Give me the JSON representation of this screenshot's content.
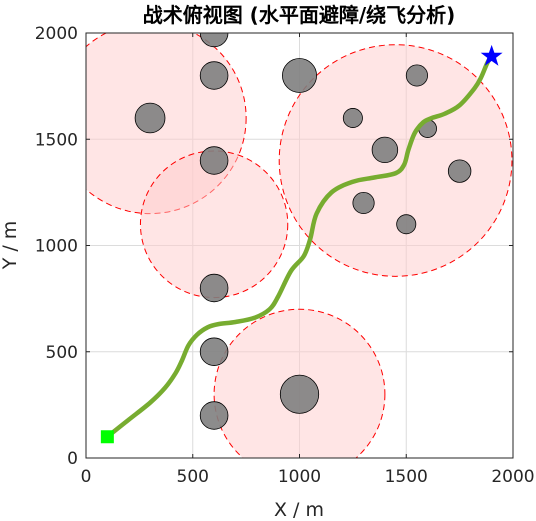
{
  "chart_data": {
    "type": "scatter",
    "title": "战术俯视图 (水平面避障/绕飞分析)",
    "xlabel": "X / m",
    "ylabel": "Y / m",
    "xlim": [
      0,
      2000
    ],
    "ylim": [
      0,
      2000
    ],
    "xticks": [
      0,
      500,
      1000,
      1500,
      2000
    ],
    "yticks": [
      0,
      500,
      1000,
      1500,
      2000
    ],
    "grid": true,
    "obstacles": [
      {
        "x": 600,
        "y": 2000,
        "r": 65
      },
      {
        "x": 300,
        "y": 1600,
        "r": 70
      },
      {
        "x": 600,
        "y": 1800,
        "r": 65
      },
      {
        "x": 600,
        "y": 1400,
        "r": 65
      },
      {
        "x": 1000,
        "y": 1800,
        "r": 80
      },
      {
        "x": 600,
        "y": 800,
        "r": 65
      },
      {
        "x": 600,
        "y": 500,
        "r": 65
      },
      {
        "x": 600,
        "y": 200,
        "r": 65
      },
      {
        "x": 1000,
        "y": 300,
        "r": 90
      },
      {
        "x": 1250,
        "y": 1600,
        "r": 45
      },
      {
        "x": 1550,
        "y": 1800,
        "r": 50
      },
      {
        "x": 1400,
        "y": 1450,
        "r": 60
      },
      {
        "x": 1600,
        "y": 1550,
        "r": 42
      },
      {
        "x": 1750,
        "y": 1350,
        "r": 53
      },
      {
        "x": 1300,
        "y": 1200,
        "r": 50
      },
      {
        "x": 1500,
        "y": 1100,
        "r": 45
      }
    ],
    "threat_zones": [
      {
        "x": 300,
        "y": 1600,
        "r": 450
      },
      {
        "x": 600,
        "y": 1100,
        "r": 345
      },
      {
        "x": 1000,
        "y": 300,
        "r": 400
      },
      {
        "x": 1450,
        "y": 1400,
        "r": 545
      }
    ],
    "path": {
      "x": [
        100,
        200,
        300,
        370,
        420,
        450,
        480,
        520,
        570,
        620,
        700,
        790,
        860,
        900,
        960,
        1020,
        1050,
        1080,
        1150,
        1250,
        1350,
        1450,
        1490,
        1510,
        1540,
        1580,
        1620,
        1680,
        1750,
        1820,
        1850,
        1880,
        1900
      ],
      "y": [
        100,
        180,
        260,
        330,
        400,
        460,
        530,
        580,
        615,
        630,
        640,
        660,
        700,
        760,
        880,
        950,
        1030,
        1150,
        1250,
        1300,
        1320,
        1340,
        1380,
        1450,
        1530,
        1580,
        1600,
        1620,
        1660,
        1740,
        1790,
        1860,
        1890
      ]
    },
    "start": {
      "x": 100,
      "y": 100
    },
    "goal": {
      "x": 1900,
      "y": 1890
    },
    "colors": {
      "obstacle_fill": "#7f7f7f",
      "obstacle_edge": "#000000",
      "threat_fill": "#ffcccc",
      "threat_edge": "#ff0000",
      "path": "#77ac30",
      "start": "#00ff00",
      "goal": "#0000ff",
      "grid": "#dcdcdc"
    }
  }
}
